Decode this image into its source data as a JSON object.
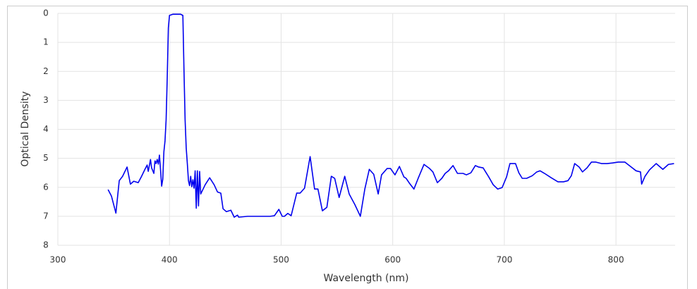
{
  "chart_data": {
    "type": "line",
    "x_label": "Wavelength (nm)",
    "y_label": "Optical Density",
    "x": [
      345,
      348,
      352,
      355,
      358,
      362,
      365,
      368,
      372,
      375,
      378,
      380,
      381,
      383,
      384,
      386,
      387,
      388,
      389,
      390,
      391,
      392,
      393,
      394,
      395,
      396,
      397,
      398,
      399,
      400,
      403,
      410,
      412,
      413,
      414,
      415,
      416,
      417,
      418,
      419,
      420,
      421,
      422,
      423,
      424,
      425,
      426,
      427,
      428,
      432,
      436,
      440,
      443,
      446,
      448,
      451,
      455,
      458,
      461,
      462,
      470,
      490,
      494,
      498,
      501,
      503,
      506,
      509,
      514,
      517,
      521,
      526,
      530,
      533,
      537,
      541,
      545,
      548,
      552,
      557,
      561,
      566,
      571,
      575,
      579,
      583,
      587,
      590,
      595,
      598,
      602,
      606,
      610,
      612,
      615,
      619,
      623,
      628,
      633,
      636,
      640,
      644,
      647,
      650,
      654,
      658,
      663,
      666,
      670,
      674,
      677,
      681,
      686,
      690,
      694,
      698,
      702,
      705,
      710,
      713,
      716,
      720,
      725,
      729,
      732,
      736,
      742,
      748,
      753,
      757,
      760,
      763,
      767,
      770,
      774,
      778,
      782,
      787,
      792,
      797,
      802,
      808,
      813,
      818,
      822,
      823,
      826,
      830,
      836,
      842,
      847,
      852
    ],
    "values": [
      6.08,
      6.3,
      6.89,
      5.77,
      5.62,
      5.3,
      5.89,
      5.79,
      5.84,
      5.62,
      5.38,
      5.23,
      5.45,
      5.04,
      5.33,
      5.52,
      5.09,
      5.18,
      5.04,
      5.2,
      4.89,
      5.4,
      5.96,
      5.72,
      4.77,
      4.4,
      3.67,
      2.2,
      0.5,
      0.07,
      0.03,
      0.03,
      0.07,
      1.97,
      3.67,
      4.65,
      5.18,
      5.77,
      5.94,
      5.62,
      5.98,
      5.74,
      6.03,
      5.43,
      6.72,
      5.43,
      6.64,
      5.45,
      6.23,
      5.91,
      5.67,
      5.91,
      6.16,
      6.2,
      6.74,
      6.84,
      6.79,
      7.03,
      6.96,
      7.03,
      7.0,
      7.0,
      6.98,
      6.76,
      7.0,
      7.0,
      6.9,
      6.98,
      6.2,
      6.2,
      6.03,
      4.94,
      6.06,
      6.06,
      6.81,
      6.69,
      5.62,
      5.69,
      6.35,
      5.62,
      6.23,
      6.59,
      7.0,
      6.06,
      5.38,
      5.55,
      6.23,
      5.57,
      5.35,
      5.35,
      5.57,
      5.28,
      5.64,
      5.69,
      5.86,
      6.06,
      5.67,
      5.21,
      5.35,
      5.47,
      5.84,
      5.69,
      5.52,
      5.43,
      5.25,
      5.52,
      5.52,
      5.57,
      5.5,
      5.25,
      5.3,
      5.33,
      5.64,
      5.91,
      6.06,
      6.01,
      5.64,
      5.18,
      5.18,
      5.5,
      5.69,
      5.69,
      5.6,
      5.47,
      5.43,
      5.52,
      5.67,
      5.81,
      5.81,
      5.77,
      5.6,
      5.18,
      5.3,
      5.47,
      5.33,
      5.13,
      5.13,
      5.18,
      5.18,
      5.16,
      5.13,
      5.13,
      5.28,
      5.43,
      5.47,
      5.89,
      5.62,
      5.4,
      5.18,
      5.38,
      5.21,
      5.18
    ],
    "color": "#0000ee",
    "xlim": [
      300,
      853
    ],
    "xticks": [
      300,
      400,
      500,
      600,
      700,
      800
    ],
    "ylim": [
      0,
      8
    ],
    "yticks": [
      0,
      1,
      2,
      3,
      4,
      5,
      6,
      7,
      8
    ],
    "y_inverted": true,
    "grid": true
  }
}
